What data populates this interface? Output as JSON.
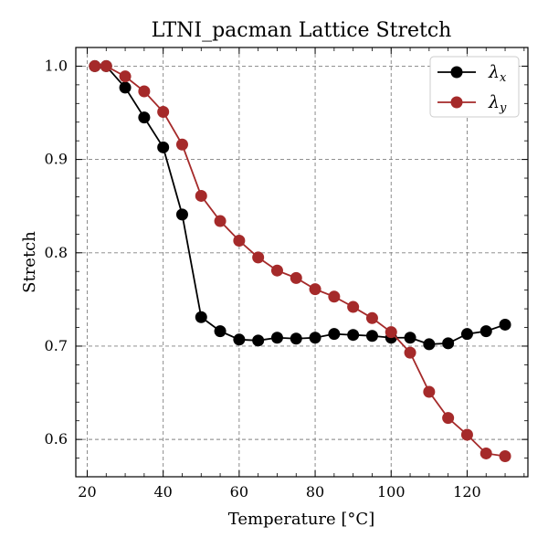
{
  "chart_data": {
    "type": "line",
    "title": "LTNI_pacman Lattice Stretch",
    "xlabel": "Temperature [°C]",
    "ylabel": "Stretch",
    "xlim": [
      17,
      136
    ],
    "ylim": [
      0.56,
      1.02
    ],
    "xticks": [
      20,
      40,
      60,
      80,
      100,
      120
    ],
    "yticks": [
      0.6,
      0.7,
      0.8,
      0.9,
      1.0
    ],
    "grid": true,
    "legend_position": "top-right",
    "series": [
      {
        "name": "λx",
        "sub": "x",
        "color": "#000000",
        "x": [
          22,
          25,
          30,
          35,
          40,
          45,
          50,
          55,
          60,
          65,
          70,
          75,
          80,
          85,
          90,
          95,
          100,
          105,
          110,
          115,
          120,
          125,
          130
        ],
        "y": [
          1.0,
          1.0,
          0.977,
          0.945,
          0.913,
          0.841,
          0.731,
          0.716,
          0.707,
          0.706,
          0.709,
          0.708,
          0.709,
          0.713,
          0.712,
          0.711,
          0.709,
          0.709,
          0.702,
          0.703,
          0.713,
          0.716,
          0.723
        ]
      },
      {
        "name": "λy",
        "sub": "y",
        "color": "#a52a2a",
        "x": [
          22,
          25,
          30,
          35,
          40,
          45,
          50,
          55,
          60,
          65,
          70,
          75,
          80,
          85,
          90,
          95,
          100,
          105,
          110,
          115,
          120,
          125,
          130
        ],
        "y": [
          1.0,
          1.0,
          0.989,
          0.973,
          0.951,
          0.916,
          0.861,
          0.834,
          0.813,
          0.795,
          0.781,
          0.773,
          0.761,
          0.753,
          0.742,
          0.73,
          0.715,
          0.693,
          0.651,
          0.623,
          0.605,
          0.585,
          0.582
        ]
      }
    ]
  }
}
